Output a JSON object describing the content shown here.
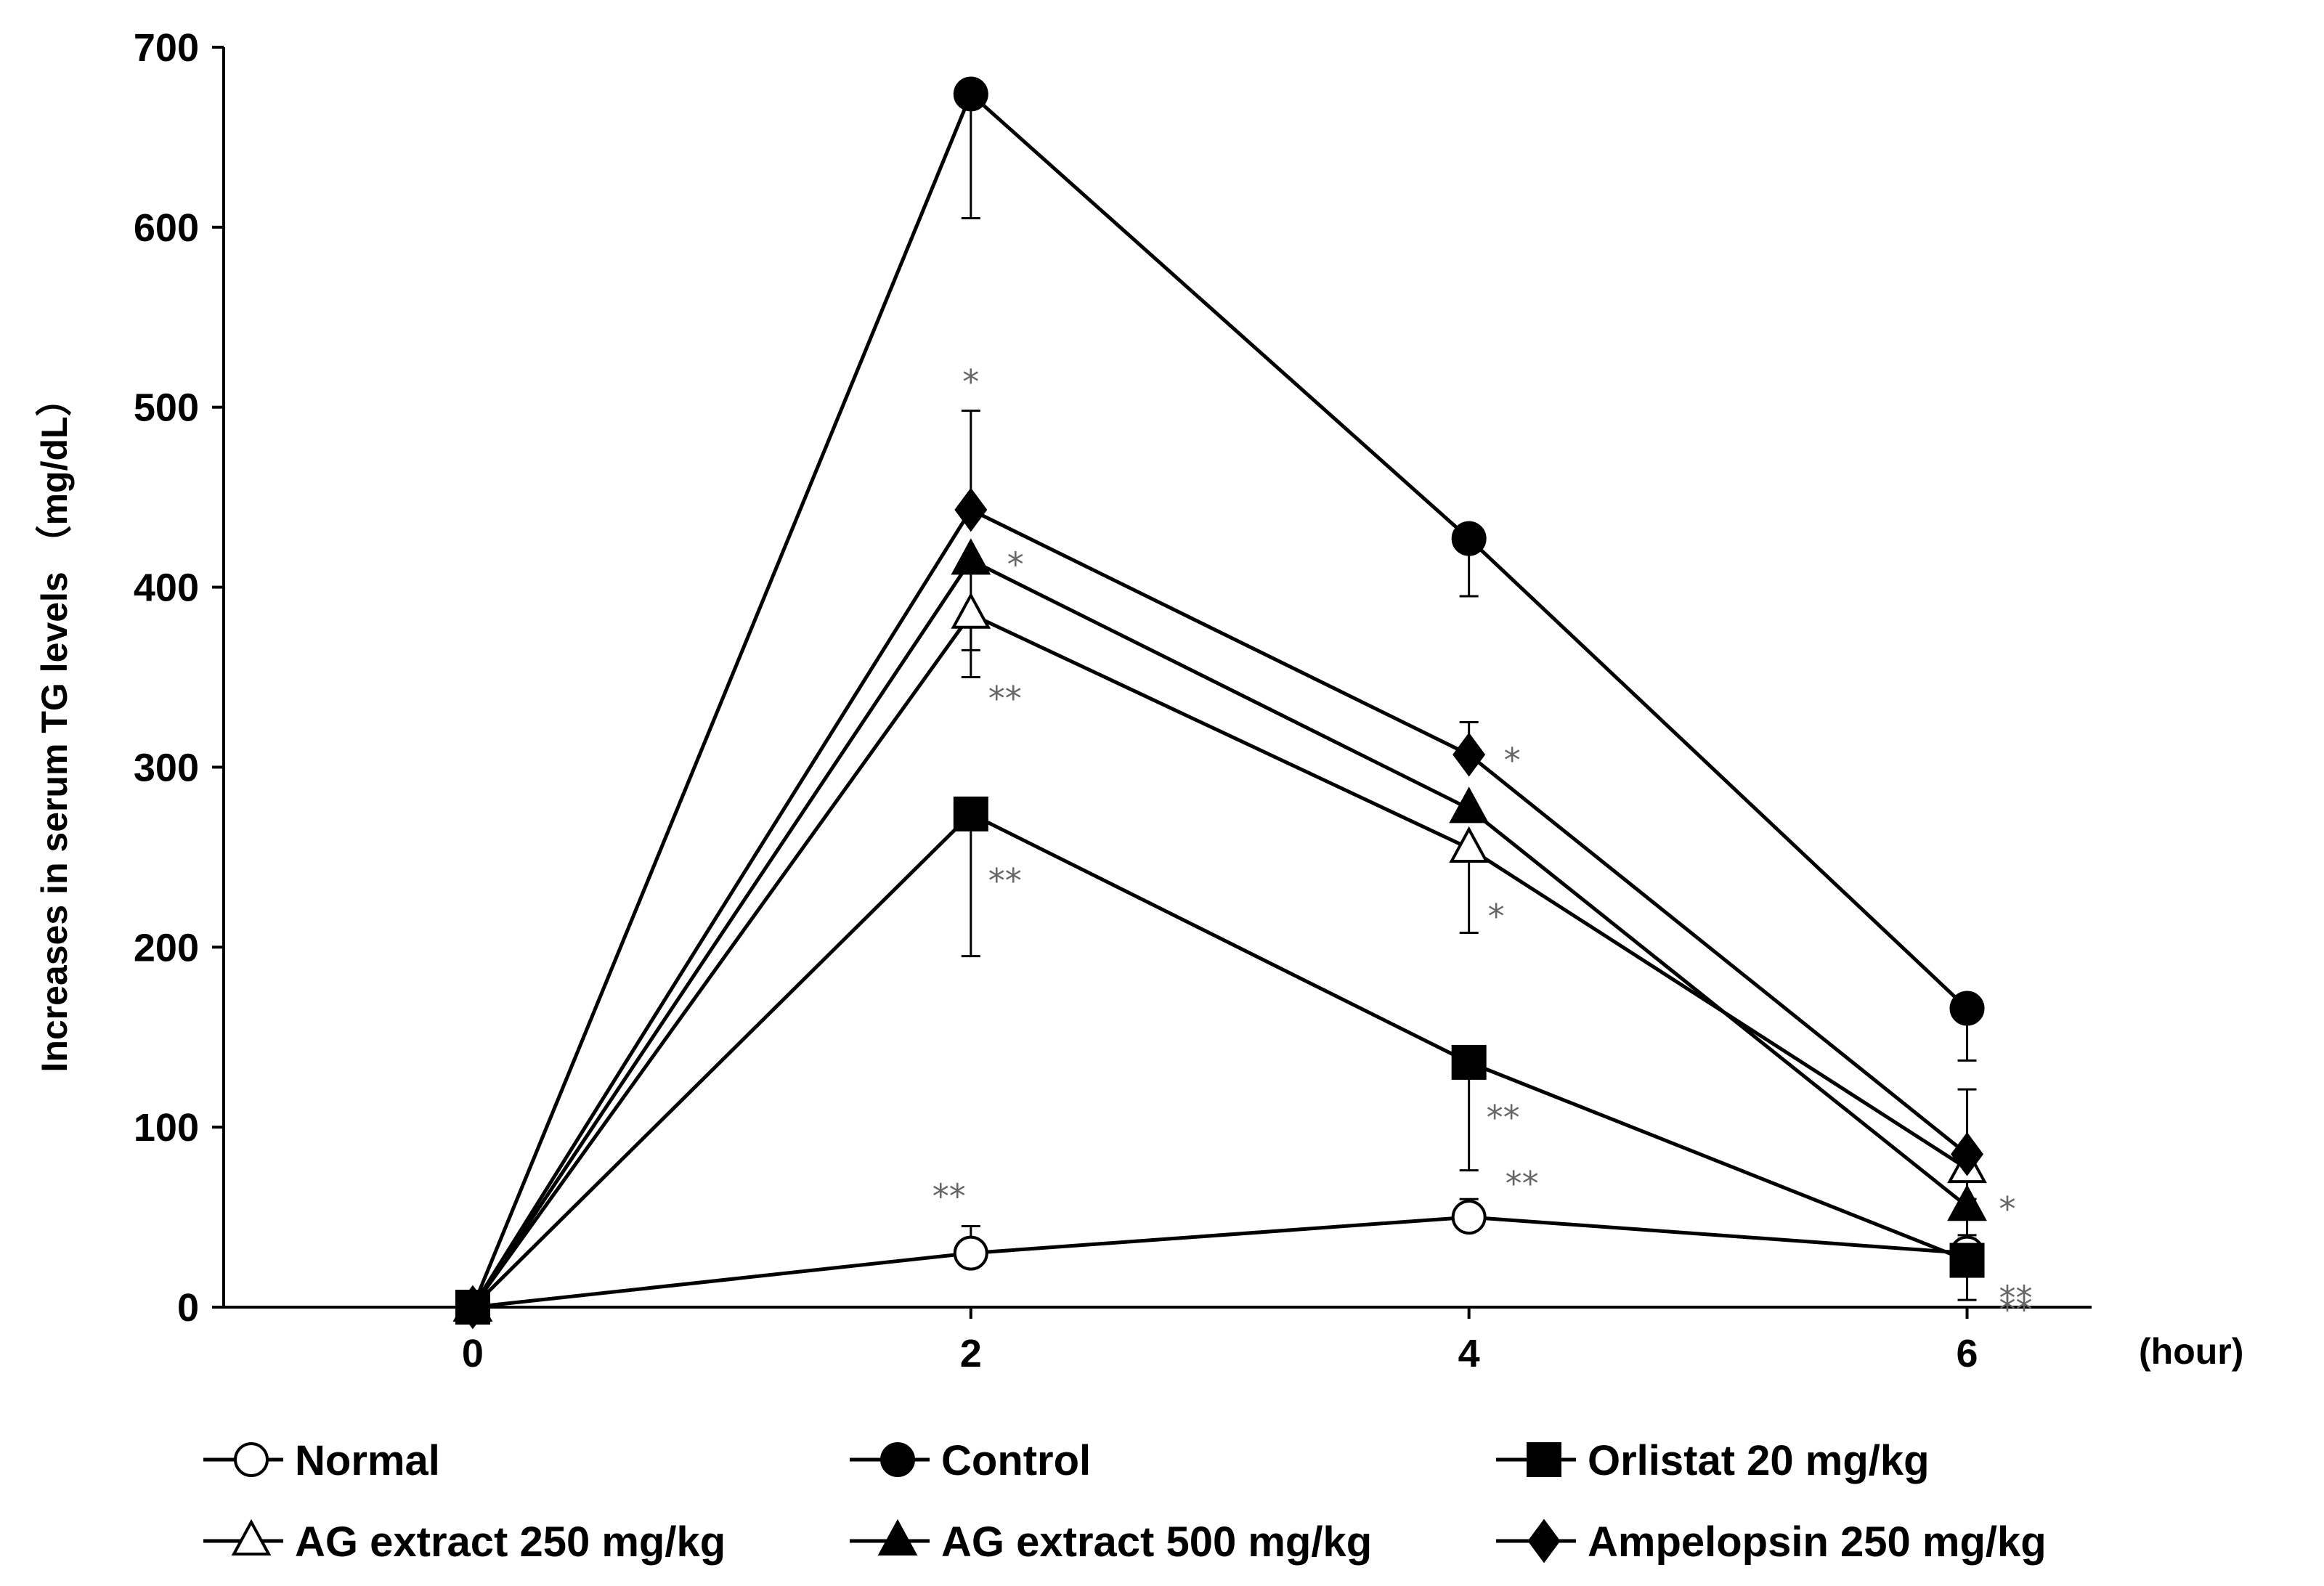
{
  "chart_data": {
    "type": "line",
    "title": "",
    "xlabel": "(hour)",
    "ylabel": "Increases in serum TG levels （mg/dL）",
    "x": [
      0,
      2,
      4,
      6
    ],
    "x_ticks": [
      "0",
      "2",
      "4",
      "6"
    ],
    "xlim": [
      -1,
      6.5
    ],
    "ylim": [
      0,
      700
    ],
    "y_ticks": [
      "0",
      "100",
      "200",
      "300",
      "400",
      "500",
      "600",
      "700"
    ],
    "grid": false,
    "legend_position": "bottom",
    "series": [
      {
        "name": "Normal",
        "marker": "circle-open",
        "values": [
          0,
          30,
          50,
          30
        ],
        "err_upper": [
          0,
          45,
          60,
          38
        ],
        "err_lower": [
          0,
          30,
          50,
          30
        ],
        "significance": [
          "",
          "**",
          "**",
          "**"
        ]
      },
      {
        "name": "Control",
        "marker": "circle-filled",
        "values": [
          0,
          674,
          427,
          166
        ],
        "err_upper": [
          0,
          674,
          427,
          166
        ],
        "err_lower": [
          0,
          605,
          395,
          137
        ],
        "significance": [
          "",
          "",
          "",
          ""
        ]
      },
      {
        "name": "Orlistat 20 mg/kg",
        "marker": "square-filled",
        "values": [
          0,
          274,
          136,
          26
        ],
        "err_upper": [
          0,
          274,
          136,
          26
        ],
        "err_lower": [
          0,
          195,
          76,
          4
        ],
        "significance": [
          "",
          "**",
          "**",
          "**"
        ]
      },
      {
        "name": "AG extract 250 mg/kg",
        "marker": "triangle-open",
        "values": [
          0,
          385,
          255,
          77
        ],
        "err_upper": [
          0,
          385,
          255,
          77
        ],
        "err_lower": [
          0,
          350,
          208,
          60
        ],
        "significance": [
          "",
          "**",
          "*",
          ""
        ]
      },
      {
        "name": "AG extract 500 mg/kg",
        "marker": "triangle-filled",
        "values": [
          0,
          415,
          277,
          56
        ],
        "err_upper": [
          0,
          415,
          277,
          56
        ],
        "err_lower": [
          0,
          365,
          277,
          40
        ],
        "significance": [
          "",
          "*",
          "",
          "*"
        ]
      },
      {
        "name": "Ampelopsin 250 mg/kg",
        "marker": "diamond-filled",
        "values": [
          0,
          443,
          307,
          85
        ],
        "err_upper": [
          0,
          498,
          325,
          121
        ],
        "err_lower": [
          0,
          443,
          307,
          85
        ],
        "significance": [
          "",
          "*",
          "*",
          ""
        ]
      }
    ]
  }
}
